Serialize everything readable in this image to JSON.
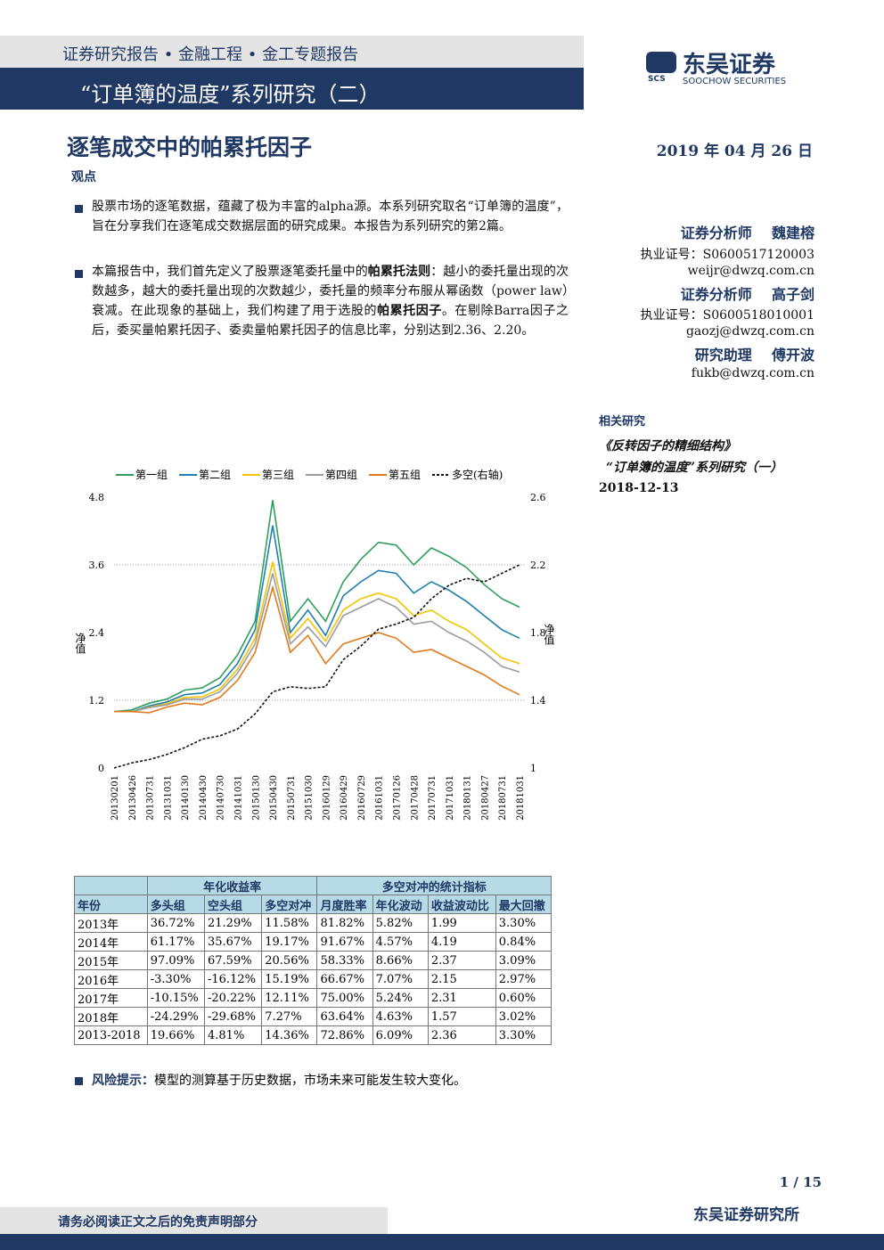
{
  "header": {
    "series_line": "证券研究报告 • 金融工程 • 金工专题报告",
    "banner": "“订单簿的温度”系列研究（二）",
    "logo_cn": "东吴证券",
    "logo_abbr": "SCS",
    "logo_en": "SOOCHOW SECURITIES"
  },
  "title": "逐笔成交中的帕累托因子",
  "date": "2019 年 04 月 26 日",
  "section": "观点",
  "bullets": [
    [
      "股票市场的逐笔数据，蕴藏了极为丰富的alpha源。本系列研究取名“订单簿的温度”，旨在分享我们在逐笔成交数据层面的研究成果。本报告为系列研究的第2篇。"
    ],
    [
      "本篇报告中，我们首先定义了股票逐笔委托量中的",
      "帕累托法则",
      "：越小的委托量出现的次数越多，越大的委托量出现的次数越少，委托量的频率分布服从幂函数（power law）衰减。在此现象的基础上，我们构建了用于选股的",
      "帕累托因子",
      "。在剔除Barra因子之后，委买量帕累托因子、委卖量帕累托因子的信息比率，分别达到2.36、2.20。"
    ]
  ],
  "analysts": [
    {
      "role": "证券分析师",
      "name": "魏建榕",
      "license": "执业证号：S0600517120003",
      "email": "weijr@dwzq.com.cn"
    },
    {
      "role": "证券分析师",
      "name": "高子剑",
      "license": "执业证号：S0600518010001",
      "email": "gaozj@dwzq.com.cn"
    },
    {
      "role": "研究助理",
      "name": "傅开波",
      "email": "fukb@dwzq.com.cn"
    }
  ],
  "related": {
    "heading": "相关研究",
    "items": [
      "《反转因子的精细结构》",
      "“订单簿的温度”系列研究（一）",
      "2018-12-13"
    ]
  },
  "chart_data": {
    "type": "line",
    "ylabel": "净值",
    "y2label": "净值",
    "categories": [
      "20130201",
      "20130426",
      "20130731",
      "20131031",
      "20140130",
      "20140430",
      "20140730",
      "20141031",
      "20150130",
      "20150430",
      "20150731",
      "20151030",
      "20160129",
      "20160429",
      "20160729",
      "20161031",
      "20170126",
      "20170428",
      "20170731",
      "20171031",
      "20180131",
      "20180427",
      "20180731",
      "20181031"
    ],
    "ylim": [
      0,
      4.8
    ],
    "yticks": [
      0,
      1.2,
      2.4,
      3.6,
      4.8
    ],
    "y2lim": [
      1,
      2.6
    ],
    "y2ticks": [
      1,
      1.4,
      1.8,
      2.2,
      2.6
    ],
    "grid": true,
    "series": [
      {
        "name": "第一组",
        "color": "#2ea05a",
        "values": [
          1.0,
          1.03,
          1.15,
          1.22,
          1.38,
          1.42,
          1.6,
          2.0,
          2.6,
          4.75,
          2.6,
          3.0,
          2.6,
          3.3,
          3.7,
          4.0,
          3.95,
          3.6,
          3.9,
          3.75,
          3.55,
          3.25,
          3.0,
          2.85
        ]
      },
      {
        "name": "第二组",
        "color": "#1f7fae",
        "values": [
          1.0,
          1.0,
          1.1,
          1.17,
          1.3,
          1.33,
          1.48,
          1.85,
          2.45,
          4.3,
          2.4,
          2.8,
          2.35,
          3.05,
          3.3,
          3.5,
          3.45,
          3.1,
          3.3,
          3.15,
          2.95,
          2.7,
          2.45,
          2.3
        ]
      },
      {
        "name": "第三组",
        "color": "#f2c400",
        "values": [
          1.0,
          1.0,
          1.08,
          1.14,
          1.25,
          1.26,
          1.4,
          1.75,
          2.3,
          3.65,
          2.3,
          2.65,
          2.25,
          2.8,
          3.0,
          3.1,
          3.0,
          2.7,
          2.8,
          2.6,
          2.45,
          2.2,
          1.95,
          1.85
        ]
      },
      {
        "name": "第四组",
        "color": "#9a9aa8",
        "values": [
          1.0,
          1.0,
          1.07,
          1.12,
          1.22,
          1.22,
          1.35,
          1.68,
          2.2,
          3.45,
          2.2,
          2.5,
          2.15,
          2.7,
          2.85,
          3.0,
          2.85,
          2.55,
          2.6,
          2.4,
          2.25,
          2.05,
          1.8,
          1.7
        ]
      },
      {
        "name": "第五组",
        "color": "#e07b1a",
        "values": [
          1.0,
          1.0,
          0.98,
          1.08,
          1.15,
          1.12,
          1.25,
          1.55,
          2.05,
          3.2,
          2.05,
          2.35,
          1.85,
          2.2,
          2.3,
          2.4,
          2.3,
          2.05,
          2.1,
          1.95,
          1.8,
          1.65,
          1.45,
          1.3
        ]
      },
      {
        "name": "多空(右轴)",
        "color": "#111111",
        "axis": "y2",
        "dashed": true,
        "values": [
          1.0,
          1.03,
          1.05,
          1.08,
          1.12,
          1.17,
          1.19,
          1.23,
          1.32,
          1.45,
          1.48,
          1.47,
          1.48,
          1.64,
          1.72,
          1.82,
          1.85,
          1.89,
          2.0,
          2.08,
          2.12,
          2.1,
          2.15,
          2.2
        ]
      }
    ]
  },
  "table": {
    "group_headers": [
      "年化收益率",
      "多空对冲的统计指标"
    ],
    "columns": [
      "年份",
      "多头组",
      "空头组",
      "多空对冲",
      "月度胜率",
      "年化波动",
      "收益波动比",
      "最大回撤"
    ],
    "rows": [
      [
        "2013年",
        "36.72%",
        "21.29%",
        "11.58%",
        "81.82%",
        "5.82%",
        "1.99",
        "3.30%"
      ],
      [
        "2014年",
        "61.17%",
        "35.67%",
        "19.17%",
        "91.67%",
        "4.57%",
        "4.19",
        "0.84%"
      ],
      [
        "2015年",
        "97.09%",
        "67.59%",
        "20.56%",
        "58.33%",
        "8.66%",
        "2.37",
        "3.09%"
      ],
      [
        "2016年",
        "-3.30%",
        "-16.12%",
        "15.19%",
        "66.67%",
        "7.07%",
        "2.15",
        "2.97%"
      ],
      [
        "2017年",
        "-10.15%",
        "-20.22%",
        "12.11%",
        "75.00%",
        "5.24%",
        "2.31",
        "0.60%"
      ],
      [
        "2018年",
        "-24.29%",
        "-29.68%",
        "7.27%",
        "63.64%",
        "4.63%",
        "1.57",
        "3.02%"
      ],
      [
        "2013-2018",
        "19.66%",
        "4.81%",
        "14.36%",
        "72.86%",
        "6.09%",
        "2.36",
        "3.30%"
      ]
    ]
  },
  "risk": {
    "label": "风险提示：",
    "text": "模型的测算基于历史数据，市场未来可能发生较大变化。"
  },
  "footer": {
    "page": "1 / 15",
    "disclaimer": "请务必阅读正文之后的免责声明部分",
    "org": "东吴证券研究所"
  }
}
